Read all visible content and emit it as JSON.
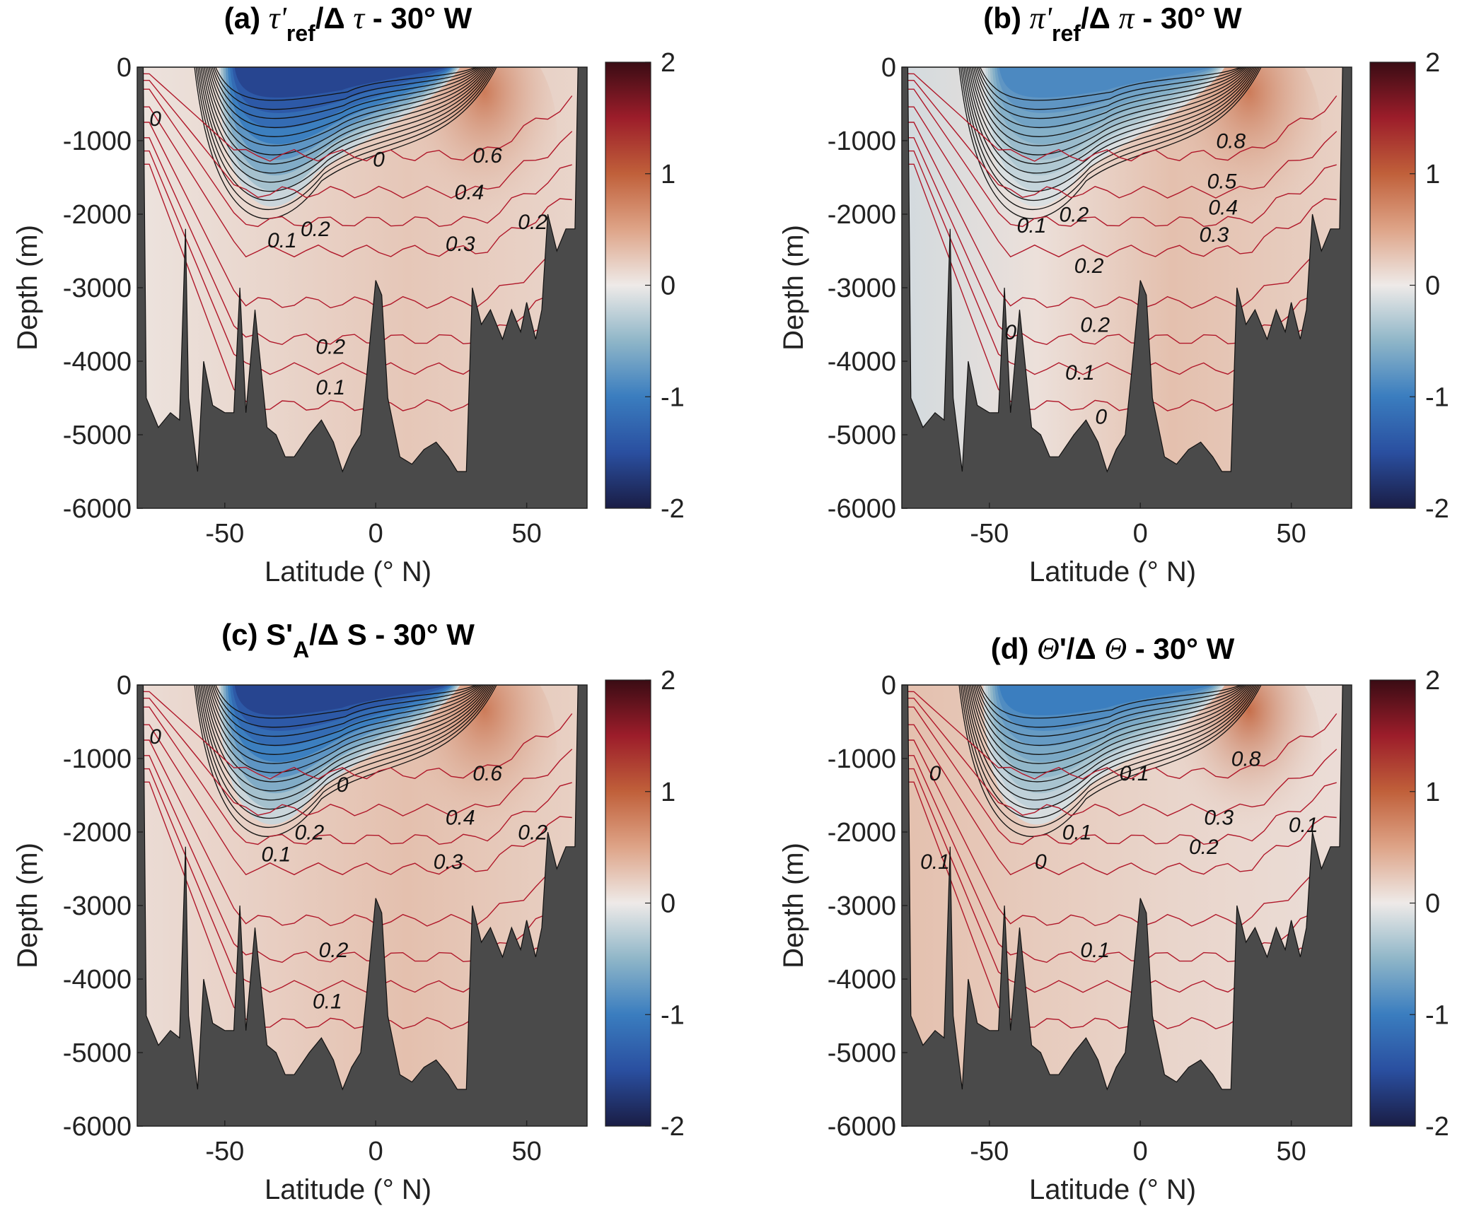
{
  "colors": {
    "seafloor": "#4a4a4a",
    "red_contour": "#b0182a",
    "black_contour": "#111111"
  },
  "colormap": {
    "stops": [
      {
        "v": -2,
        "c": "#1a1d45"
      },
      {
        "v": -1.5,
        "c": "#2a4fa0"
      },
      {
        "v": -1,
        "c": "#3a7dbf"
      },
      {
        "v": -0.5,
        "c": "#8fb6c8"
      },
      {
        "v": 0,
        "c": "#eeeae8"
      },
      {
        "v": 0.5,
        "c": "#deA488"
      },
      {
        "v": 1,
        "c": "#c0603a"
      },
      {
        "v": 1.5,
        "c": "#9c1d2a"
      },
      {
        "v": 2,
        "c": "#3a0c14"
      }
    ]
  },
  "chart_data": [
    {
      "type": "heatmap",
      "title_parts": [
        "(a) ",
        "τ'",
        "ref",
        "/Δ ",
        "τ",
        " - 30° W"
      ],
      "xlabel": "Latitude (° N)",
      "ylabel": "Depth (m)",
      "xlim": [
        -79,
        70
      ],
      "ylim": [
        -6000,
        0
      ],
      "xticks": [
        "-50",
        "0",
        "50"
      ],
      "xtick_values": [
        -50,
        0,
        50
      ],
      "yticks": [
        "0",
        "-1000",
        "-2000",
        "-3000",
        "-4000",
        "-5000",
        "-6000"
      ],
      "ytick_values": [
        0,
        -1000,
        -2000,
        -3000,
        -4000,
        -5000,
        -6000
      ],
      "colorbar": {
        "range": [
          -2,
          2
        ],
        "ticks": [
          "2",
          "1",
          "0",
          "-1",
          "-2"
        ],
        "tick_values": [
          2,
          1,
          0,
          -1,
          -2
        ]
      },
      "deep_value": 0.25,
      "south_value": 0.05,
      "aaiw_min": -1.6,
      "north_max": 0.8,
      "contour_labels": [
        {
          "text": "0",
          "lat": -73,
          "depth": -800
        },
        {
          "text": "0",
          "lat": 1,
          "depth": -1350
        },
        {
          "text": "0.1",
          "lat": -31,
          "depth": -2450
        },
        {
          "text": "0.2",
          "lat": -20,
          "depth": -2300
        },
        {
          "text": "0.3",
          "lat": 28,
          "depth": -2500
        },
        {
          "text": "0.4",
          "lat": 31,
          "depth": -1800
        },
        {
          "text": "0.6",
          "lat": 37,
          "depth": -1300
        },
        {
          "text": "0.2",
          "lat": 52,
          "depth": -2200
        },
        {
          "text": "0.2",
          "lat": -15,
          "depth": -3900
        },
        {
          "text": "0.1",
          "lat": -15,
          "depth": -4450
        }
      ]
    },
    {
      "type": "heatmap",
      "title_parts": [
        "(b) ",
        "π'",
        "ref",
        "/Δ ",
        "π",
        " - 30° W"
      ],
      "xlabel": "Latitude (° N)",
      "ylabel": "Depth (m)",
      "xlim": [
        -79,
        70
      ],
      "ylim": [
        -6000,
        0
      ],
      "xticks": [
        "-50",
        "0",
        "50"
      ],
      "xtick_values": [
        -50,
        0,
        50
      ],
      "yticks": [
        "0",
        "-1000",
        "-2000",
        "-3000",
        "-4000",
        "-5000",
        "-6000"
      ],
      "ytick_values": [
        0,
        -1000,
        -2000,
        -3000,
        -4000,
        -5000,
        -6000
      ],
      "colorbar": {
        "range": [
          -2,
          2
        ],
        "ticks": [
          "2",
          "1",
          "0",
          "-1",
          "-2"
        ],
        "tick_values": [
          2,
          1,
          0,
          -1,
          -2
        ]
      },
      "deep_value": 0.3,
      "south_value": -0.15,
      "aaiw_min": -0.9,
      "north_max": 0.8,
      "contour_labels": [
        {
          "text": "0.1",
          "lat": -36,
          "depth": -2250
        },
        {
          "text": "0.2",
          "lat": -22,
          "depth": -2100
        },
        {
          "text": "0.2",
          "lat": -17,
          "depth": -2800
        },
        {
          "text": "0",
          "lat": -43,
          "depth": -3700
        },
        {
          "text": "0.2",
          "lat": -15,
          "depth": -3600
        },
        {
          "text": "0.1",
          "lat": -20,
          "depth": -4250
        },
        {
          "text": "0",
          "lat": -13,
          "depth": -4850
        },
        {
          "text": "0.5",
          "lat": 27,
          "depth": -1650
        },
        {
          "text": "0.4",
          "lat": 26,
          "depth": -1850
        },
        {
          "text": "0.3",
          "lat": 23,
          "depth": -2300
        },
        {
          "text": "0.8",
          "lat": 30,
          "depth": -1100
        }
      ]
    },
    {
      "type": "heatmap",
      "title_parts": [
        "(c) S'",
        "A",
        "/Δ S - 30° W"
      ],
      "xlabel": "Latitude (° N)",
      "ylabel": "Depth (m)",
      "xlim": [
        -79,
        70
      ],
      "ylim": [
        -6000,
        0
      ],
      "xticks": [
        "-50",
        "0",
        "50"
      ],
      "xtick_values": [
        -50,
        0,
        50
      ],
      "yticks": [
        "0",
        "-1000",
        "-2000",
        "-3000",
        "-4000",
        "-5000",
        "-6000"
      ],
      "ytick_values": [
        0,
        -1000,
        -2000,
        -3000,
        -4000,
        -5000,
        -6000
      ],
      "colorbar": {
        "range": [
          -2,
          2
        ],
        "ticks": [
          "2",
          "1",
          "0",
          "-1",
          "-2"
        ],
        "tick_values": [
          2,
          1,
          0,
          -1,
          -2
        ]
      },
      "deep_value": 0.3,
      "south_value": 0.1,
      "aaiw_min": -1.6,
      "north_max": 0.8,
      "contour_labels": [
        {
          "text": "0",
          "lat": -73,
          "depth": -800
        },
        {
          "text": "0",
          "lat": -11,
          "depth": -1450
        },
        {
          "text": "0.1",
          "lat": -33,
          "depth": -2400
        },
        {
          "text": "0.2",
          "lat": -22,
          "depth": -2100
        },
        {
          "text": "0.4",
          "lat": 28,
          "depth": -1900
        },
        {
          "text": "0.3",
          "lat": 24,
          "depth": -2500
        },
        {
          "text": "0.6",
          "lat": 37,
          "depth": -1300
        },
        {
          "text": "0.2",
          "lat": 52,
          "depth": -2100
        },
        {
          "text": "0.2",
          "lat": -14,
          "depth": -3700
        },
        {
          "text": "0.1",
          "lat": -16,
          "depth": -4400
        }
      ]
    },
    {
      "type": "heatmap",
      "title_parts": [
        "(d) ",
        "Θ",
        "'/Δ ",
        "Θ",
        " - 30° W"
      ],
      "xlabel": "Latitude (° N)",
      "ylabel": "Depth (m)",
      "xlim": [
        -79,
        70
      ],
      "ylim": [
        -6000,
        0
      ],
      "xticks": [
        "-50",
        "0",
        "50"
      ],
      "xtick_values": [
        -50,
        0,
        50
      ],
      "yticks": [
        "0",
        "-1000",
        "-2000",
        "-3000",
        "-4000",
        "-5000",
        "-6000"
      ],
      "ytick_values": [
        0,
        -1000,
        -2000,
        -3000,
        -4000,
        -5000,
        -6000
      ],
      "colorbar": {
        "range": [
          -2,
          2
        ],
        "ticks": [
          "2",
          "1",
          "0",
          "-1",
          "-2"
        ],
        "tick_values": [
          2,
          1,
          0,
          -1,
          -2
        ]
      },
      "deep_value": 0.15,
      "south_value": 0.3,
      "aaiw_min": -1.0,
      "north_max": 0.9,
      "contour_labels": [
        {
          "text": "0",
          "lat": -68,
          "depth": -1300
        },
        {
          "text": "0.1",
          "lat": -68,
          "depth": -2500
        },
        {
          "text": "0.1",
          "lat": -2,
          "depth": -1300
        },
        {
          "text": "0.1",
          "lat": -21,
          "depth": -2100
        },
        {
          "text": "0",
          "lat": -33,
          "depth": -2500
        },
        {
          "text": "0.2",
          "lat": 21,
          "depth": -2300
        },
        {
          "text": "0.3",
          "lat": 26,
          "depth": -1900
        },
        {
          "text": "0.8",
          "lat": 35,
          "depth": -1100
        },
        {
          "text": "0.1",
          "lat": 54,
          "depth": -2000
        },
        {
          "text": "0.1",
          "lat": -15,
          "depth": -3700
        }
      ]
    }
  ],
  "bathymetry": [
    [
      -77,
      0
    ],
    [
      -76,
      -4500
    ],
    [
      -72,
      -4900
    ],
    [
      -68,
      -4700
    ],
    [
      -65,
      -4800
    ],
    [
      -63,
      -2200
    ],
    [
      -62,
      -4500
    ],
    [
      -59,
      -5500
    ],
    [
      -57,
      -4000
    ],
    [
      -54,
      -4600
    ],
    [
      -50,
      -4700
    ],
    [
      -47,
      -4700
    ],
    [
      -45,
      -3000
    ],
    [
      -43,
      -4700
    ],
    [
      -40,
      -3300
    ],
    [
      -36,
      -4900
    ],
    [
      -33,
      -5000
    ],
    [
      -30,
      -5300
    ],
    [
      -27,
      -5300
    ],
    [
      -22,
      -5000
    ],
    [
      -18,
      -4800
    ],
    [
      -14,
      -5100
    ],
    [
      -11,
      -5500
    ],
    [
      -8,
      -5200
    ],
    [
      -5,
      -5000
    ],
    [
      -3,
      -4200
    ],
    [
      0,
      -2900
    ],
    [
      2,
      -3100
    ],
    [
      4,
      -4500
    ],
    [
      8,
      -5300
    ],
    [
      12,
      -5400
    ],
    [
      16,
      -5200
    ],
    [
      20,
      -5100
    ],
    [
      24,
      -5300
    ],
    [
      27,
      -5500
    ],
    [
      30,
      -5500
    ],
    [
      32,
      -3000
    ],
    [
      35,
      -3500
    ],
    [
      38,
      -3300
    ],
    [
      42,
      -3700
    ],
    [
      45,
      -3300
    ],
    [
      48,
      -3600
    ],
    [
      50,
      -3200
    ],
    [
      53,
      -3700
    ],
    [
      55,
      -3300
    ],
    [
      57,
      -2000
    ],
    [
      60,
      -2500
    ],
    [
      63,
      -2200
    ],
    [
      66,
      -2200
    ],
    [
      67,
      0
    ]
  ]
}
